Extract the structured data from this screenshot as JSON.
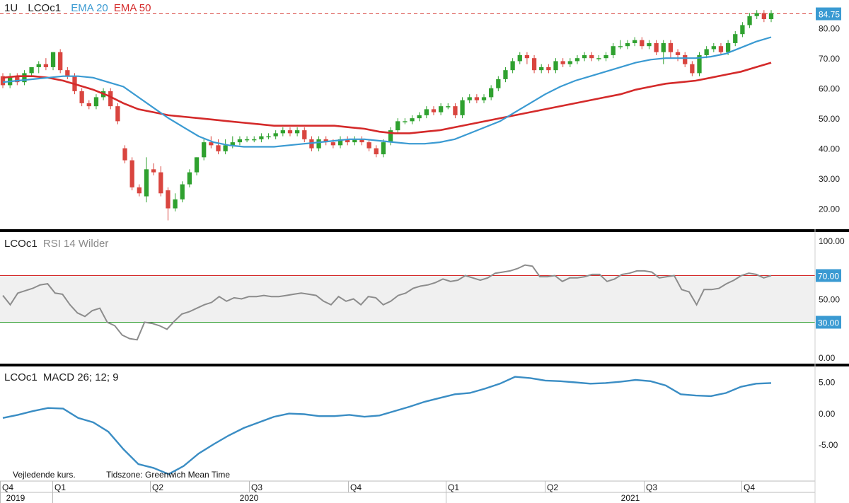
{
  "chart_data": [
    {
      "type": "candlestick",
      "panel": "price",
      "timeframe": "1U",
      "symbol": "LCOc1",
      "indicators": [
        {
          "name": "EMA 20",
          "color": "#3a9ad2"
        },
        {
          "name": "EMA 50",
          "color": "#d42a2a"
        }
      ],
      "last_value": "84.75",
      "last_line": 84.75,
      "yticks": [
        "20.00",
        "30.00",
        "40.00",
        "50.00",
        "60.00",
        "70.00",
        "80.00"
      ],
      "ylim": [
        14,
        87
      ],
      "candles": [
        [
          64,
          61,
          65,
          60
        ],
        [
          61,
          64,
          65,
          60
        ],
        [
          64,
          62,
          65,
          61
        ],
        [
          62,
          65,
          66,
          61
        ],
        [
          65,
          67,
          67,
          64
        ],
        [
          67,
          68,
          69,
          65
        ],
        [
          68,
          67,
          70,
          66
        ],
        [
          67,
          72,
          72,
          66
        ],
        [
          72,
          66,
          73,
          65
        ],
        [
          66,
          64,
          67,
          63
        ],
        [
          64,
          59,
          65,
          58
        ],
        [
          59,
          55,
          60,
          54
        ],
        [
          55,
          54,
          56,
          53
        ],
        [
          54,
          57,
          58,
          53
        ],
        [
          57,
          59,
          60,
          56
        ],
        [
          59,
          54,
          60,
          53
        ],
        [
          54,
          49,
          55,
          48
        ],
        [
          40,
          36,
          41,
          35
        ],
        [
          36,
          27,
          37,
          26
        ],
        [
          27,
          25,
          28,
          24
        ],
        [
          24,
          33,
          37,
          22
        ],
        [
          33,
          32,
          35,
          31
        ],
        [
          32,
          25,
          34,
          24
        ],
        [
          26,
          20,
          27,
          16
        ],
        [
          20,
          23,
          25,
          19
        ],
        [
          23,
          28,
          29,
          22
        ],
        [
          28,
          32,
          33,
          27
        ],
        [
          32,
          37,
          37,
          31
        ],
        [
          37,
          42,
          43,
          36
        ],
        [
          42,
          41,
          44,
          40
        ],
        [
          41,
          39,
          43,
          38
        ],
        [
          39,
          41,
          43,
          38
        ],
        [
          41,
          42,
          44,
          40
        ],
        [
          42,
          43,
          44,
          41
        ],
        [
          43,
          43,
          44,
          42
        ],
        [
          43,
          43,
          44,
          42
        ],
        [
          43,
          44,
          45,
          42
        ],
        [
          44,
          44,
          45,
          43
        ],
        [
          44,
          45,
          46,
          43
        ],
        [
          45,
          46,
          47,
          44
        ],
        [
          46,
          45,
          47,
          44
        ],
        [
          45,
          46,
          47,
          44
        ],
        [
          46,
          43,
          47,
          42
        ],
        [
          43,
          40,
          44,
          39
        ],
        [
          40,
          43,
          44,
          39
        ],
        [
          43,
          42,
          44,
          41
        ],
        [
          42,
          41,
          43,
          40
        ],
        [
          41,
          43,
          44,
          40
        ],
        [
          43,
          42,
          44,
          41
        ],
        [
          42,
          43,
          44,
          41
        ],
        [
          43,
          42,
          44,
          41
        ],
        [
          42,
          40,
          43,
          39
        ],
        [
          40,
          38,
          41,
          37
        ],
        [
          38,
          42,
          43,
          37
        ],
        [
          42,
          46,
          47,
          41
        ],
        [
          46,
          49,
          50,
          45
        ],
        [
          49,
          49,
          50,
          48
        ],
        [
          49,
          50,
          51,
          48
        ],
        [
          50,
          51,
          52,
          49
        ],
        [
          51,
          53,
          54,
          50
        ],
        [
          53,
          52,
          54,
          51
        ],
        [
          52,
          54,
          55,
          51
        ],
        [
          54,
          54,
          55,
          53
        ],
        [
          54,
          51,
          55,
          50
        ],
        [
          51,
          56,
          57,
          50
        ],
        [
          56,
          57,
          58,
          55
        ],
        [
          57,
          56,
          58,
          55
        ],
        [
          56,
          57,
          58,
          55
        ],
        [
          57,
          60,
          61,
          56
        ],
        [
          60,
          63,
          64,
          59
        ],
        [
          63,
          66,
          67,
          62
        ],
        [
          66,
          69,
          70,
          65
        ],
        [
          69,
          71,
          72,
          68
        ],
        [
          71,
          70,
          72,
          68
        ],
        [
          70,
          66,
          71,
          65
        ],
        [
          66,
          67,
          68,
          65
        ],
        [
          67,
          66,
          68,
          65
        ],
        [
          66,
          69,
          70,
          65
        ],
        [
          69,
          68,
          70,
          67
        ],
        [
          68,
          69,
          70,
          67
        ],
        [
          69,
          70,
          71,
          68
        ],
        [
          70,
          71,
          72,
          69
        ],
        [
          71,
          70,
          72,
          69
        ],
        [
          70,
          70,
          71,
          69
        ],
        [
          70,
          71,
          72,
          69
        ],
        [
          71,
          74,
          75,
          70
        ],
        [
          74,
          74,
          76,
          73
        ],
        [
          74,
          75,
          76,
          73
        ],
        [
          75,
          76,
          77,
          74
        ],
        [
          76,
          74,
          77,
          73
        ],
        [
          74,
          75,
          76,
          73
        ],
        [
          75,
          72,
          76,
          71
        ],
        [
          72,
          75,
          76,
          68
        ],
        [
          75,
          72,
          76,
          70
        ],
        [
          72,
          71,
          73,
          69
        ],
        [
          71,
          68,
          72,
          67
        ],
        [
          68,
          65,
          69,
          64
        ],
        [
          65,
          71,
          72,
          64
        ],
        [
          71,
          73,
          74,
          70
        ],
        [
          73,
          74,
          75,
          72
        ],
        [
          74,
          72,
          75,
          71
        ],
        [
          72,
          75,
          76,
          71
        ],
        [
          75,
          78,
          79,
          74
        ],
        [
          78,
          81,
          82,
          77
        ],
        [
          81,
          84,
          85,
          80
        ],
        [
          84,
          85,
          86,
          83
        ],
        [
          85,
          83,
          86,
          82
        ],
        [
          83,
          85,
          86,
          82
        ]
      ],
      "ema20": [
        62,
        62.5,
        63,
        63.5,
        64,
        64,
        63.5,
        62,
        60.5,
        57,
        53.5,
        50,
        47,
        44,
        42,
        41,
        40.5,
        40.5,
        40.5,
        41,
        41.5,
        42,
        42.5,
        43,
        43,
        42.5,
        42,
        41.5,
        41.5,
        42,
        43,
        45,
        47,
        49,
        52,
        55,
        58,
        60.5,
        62.5,
        64,
        65.5,
        67,
        68.5,
        69.5,
        70,
        70,
        70,
        70.5,
        71.5,
        73.5,
        75.5,
        77
      ],
      "ema50": [
        63.5,
        64,
        64,
        63.5,
        62.5,
        61,
        59.5,
        57.5,
        55,
        53,
        52,
        51,
        50.5,
        50,
        49.5,
        49,
        48.5,
        48,
        47.5,
        47.5,
        47.5,
        47.5,
        47.5,
        47,
        46.5,
        45.5,
        45,
        45,
        45.5,
        46,
        47,
        48,
        49,
        50,
        51,
        52,
        53,
        54,
        55,
        56,
        57,
        58,
        59.5,
        60.5,
        61.5,
        62,
        62.5,
        63.5,
        64.5,
        65.5,
        67,
        68.5
      ]
    },
    {
      "type": "line",
      "panel": "rsi",
      "title": "LCOc1",
      "indicator": "RSI 14 Wilder",
      "yticks": [
        "100.00",
        "70.00",
        "50.00",
        "30.00",
        "0.00"
      ],
      "ylim": [
        0,
        100
      ],
      "levels": [
        {
          "value": 70,
          "label": "70.00",
          "color": "#d42a2a"
        },
        {
          "value": 30,
          "label": "30.00",
          "color": "#2a9a2a"
        }
      ],
      "band_color": "#f0f0f0",
      "line_color": "#8c8c8c",
      "values": [
        53,
        45,
        55,
        57,
        59,
        62,
        63,
        55,
        54,
        45,
        38,
        35,
        40,
        42,
        30,
        27,
        19,
        16,
        15,
        30,
        29,
        27,
        24,
        31,
        37,
        39,
        42,
        45,
        47,
        52,
        48,
        51,
        50,
        52,
        52,
        53,
        52,
        52,
        53,
        54,
        55,
        54,
        53,
        48,
        45,
        52,
        48,
        50,
        45,
        52,
        51,
        45,
        48,
        53,
        55,
        59,
        61,
        62,
        64,
        67,
        65,
        66,
        70,
        68,
        66,
        68,
        72,
        73,
        74,
        76,
        79,
        78,
        69,
        69,
        70,
        65,
        68,
        68,
        69,
        71,
        71,
        65,
        67,
        71,
        72,
        74,
        74,
        73,
        68,
        69,
        70,
        58,
        56,
        45,
        58,
        58,
        59,
        63,
        66,
        70,
        72,
        71,
        68,
        70
      ]
    },
    {
      "type": "line",
      "panel": "macd",
      "title": "LCOc1",
      "indicator": "MACD 26; 12; 9",
      "yticks": [
        "5.00",
        "0.00",
        "-5.00"
      ],
      "ylim": [
        -10,
        7
      ],
      "line_color": "#3a8dc4",
      "values": [
        -0.8,
        -0.3,
        0.3,
        0.8,
        0.7,
        -0.8,
        -1.5,
        -3,
        -5.8,
        -8.2,
        -8.8,
        -9.8,
        -8.5,
        -6.5,
        -5,
        -3.6,
        -2.4,
        -1.5,
        -0.6,
        -0.1,
        -0.2,
        -0.5,
        -0.5,
        -0.3,
        -0.6,
        -0.4,
        0.3,
        1,
        1.8,
        2.4,
        3,
        3.2,
        3.9,
        4.7,
        5.8,
        5.6,
        5.2,
        5.1,
        4.9,
        4.7,
        4.8,
        5,
        5.3,
        5.1,
        4.4,
        3,
        2.8,
        2.7,
        3.2,
        4.2,
        4.7,
        4.8
      ]
    },
    {
      "type": "time_axis",
      "quarters": [
        "Q4",
        "Q1",
        "Q2",
        "Q3",
        "Q4",
        "Q1",
        "Q2",
        "Q3",
        "Q4"
      ],
      "years": [
        "2019",
        "2020",
        "2021"
      ]
    }
  ],
  "header": {
    "timeframe": "1U",
    "symbol": "LCOc1",
    "ema20_label": "EMA 20",
    "ema50_label": "EMA 50"
  },
  "rsi_header": {
    "symbol": "LCOc1",
    "indicator": "RSI 14 Wilder"
  },
  "macd_header": {
    "symbol": "LCOc1",
    "indicator": "MACD 26; 12; 9"
  },
  "footer": {
    "note": "Vejledende kurs.",
    "timezone": "Tidszone: Greenwich Mean Time"
  },
  "colors": {
    "up": "#2fa12f",
    "down": "#d9453f",
    "ema20": "#3a9ad2",
    "ema50": "#d42a2a",
    "separator": "#000000"
  }
}
